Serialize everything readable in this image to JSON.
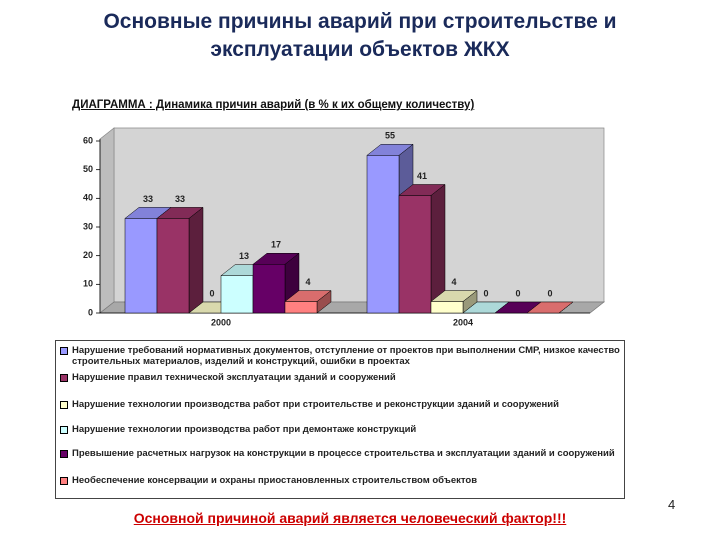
{
  "chart_data": {
    "type": "bar3d",
    "title": "Основные причины аварий при строительстве и эксплуатации объектов ЖКХ",
    "subtitle": "ДИАГРАММА : Динамика причин аварий  (в % к их общему количеству)",
    "categories": [
      "2000",
      "2004"
    ],
    "series": [
      {
        "name": "Нарушение требований нормативных документов, отступление от проектов при выполнении СМР, низкое качество строительных материалов, изделий и конструкций, ошибки в проектах",
        "color": "#9999ff",
        "values": [
          33,
          55
        ]
      },
      {
        "name": "Нарушение правил технической эксплуатации зданий и сооружений",
        "color": "#993366",
        "values": [
          33,
          41
        ]
      },
      {
        "name": "Нарушение технологии производства работ при строительстве и реконструкции зданий и сооружений",
        "color": "#ffffcc",
        "values": [
          0,
          4
        ]
      },
      {
        "name": "Нарушение технологии производства работ при демонтаже конструкций",
        "color": "#ccffff",
        "values": [
          13,
          0
        ]
      },
      {
        "name": "Превышение расчетных нагрузок на конструкции в процессе строительства и эксплуатации зданий и сооружений",
        "color": "#660066",
        "values": [
          17,
          0
        ]
      },
      {
        "name": "Необеспечение консервации и охраны приостановленных строительством объектов",
        "color": "#ff8080",
        "values": [
          4,
          0
        ]
      }
    ],
    "ylim": [
      0,
      60
    ],
    "yticks": [
      0,
      10,
      20,
      30,
      40,
      50,
      60
    ],
    "footer": "Основной причиной аварий является человеческий фактор!!!",
    "page_number": "4"
  }
}
